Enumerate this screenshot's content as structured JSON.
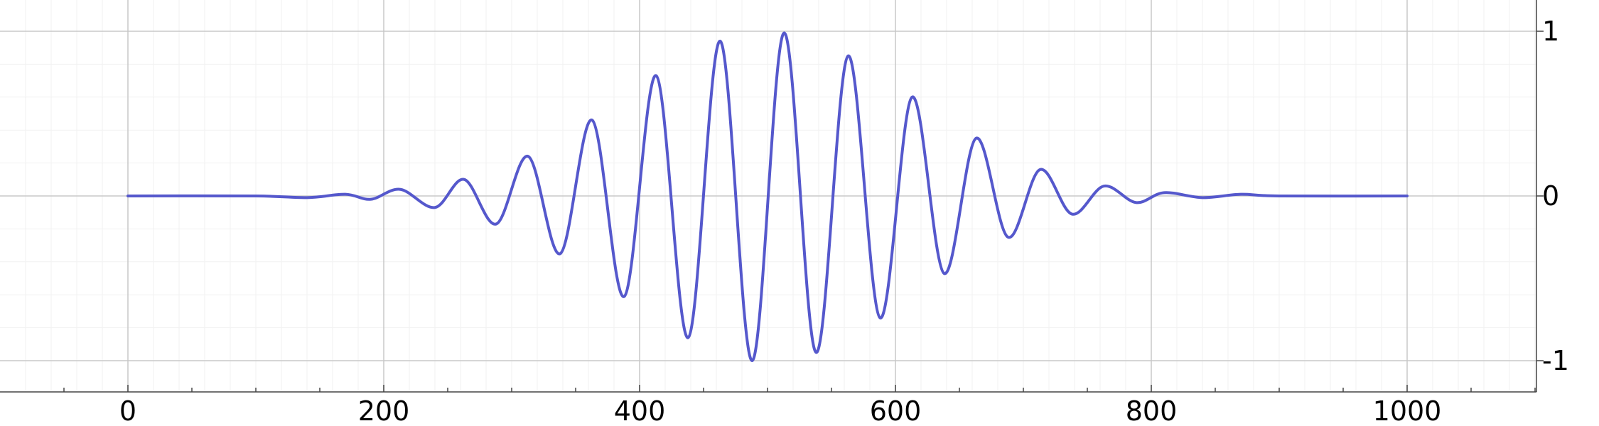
{
  "chart_data": {
    "type": "line",
    "title": "",
    "xlabel": "",
    "ylabel": "",
    "xlim": [
      -80,
      1100
    ],
    "ylim": [
      -1.18,
      1.18
    ],
    "x_ticks": [
      0,
      200,
      400,
      600,
      800,
      1000
    ],
    "x_tick_labels": [
      "0",
      "200",
      "400",
      "600",
      "800",
      "1000"
    ],
    "y_ticks": [
      -1,
      0,
      1
    ],
    "y_tick_labels": [
      "-1",
      "0",
      "1"
    ],
    "grid": true,
    "y_axis_position": "right",
    "series": [
      {
        "color": "#5558cc",
        "x_start": 0,
        "x_end": 1000,
        "points": [
          [
            0,
            0
          ],
          [
            100,
            0
          ],
          [
            140,
            -0.01
          ],
          [
            170,
            0.01
          ],
          [
            190,
            -0.02
          ],
          [
            213,
            0.04
          ],
          [
            240,
            -0.07
          ],
          [
            263,
            0.1
          ],
          [
            288,
            -0.17
          ],
          [
            313,
            0.24
          ],
          [
            338,
            -0.35
          ],
          [
            363,
            0.46
          ],
          [
            388,
            -0.61
          ],
          [
            413,
            0.73
          ],
          [
            438,
            -0.86
          ],
          [
            463,
            0.94
          ],
          [
            488,
            -1.0
          ],
          [
            513,
            0.99
          ],
          [
            538,
            -0.95
          ],
          [
            563,
            0.85
          ],
          [
            588,
            -0.74
          ],
          [
            613,
            0.6
          ],
          [
            638,
            -0.47
          ],
          [
            663,
            0.35
          ],
          [
            688,
            -0.25
          ],
          [
            713,
            0.16
          ],
          [
            738,
            -0.11
          ],
          [
            763,
            0.06
          ],
          [
            788,
            -0.04
          ],
          [
            810,
            0.02
          ],
          [
            840,
            -0.01
          ],
          [
            870,
            0.01
          ],
          [
            900,
            0
          ],
          [
            1000,
            0
          ]
        ]
      }
    ]
  }
}
